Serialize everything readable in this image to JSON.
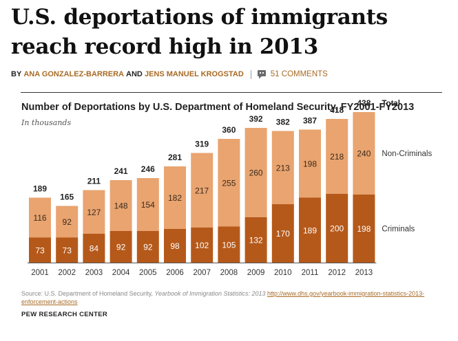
{
  "article": {
    "headline": "U.S. deportations of immigrants reach record high in 2013",
    "byline_prefix": "BY",
    "author_1": "ANA GONZALEZ-BARRERA",
    "byline_and": "AND",
    "author_2": "JENS MANUEL KROGSTAD",
    "comments_label": "51 COMMENTS",
    "comment_icon": "speech-bubble-icon"
  },
  "colors": {
    "criminals": "#b5591a",
    "non_criminals": "#e9a470",
    "accent": "#a86a24",
    "axis": "#555555"
  },
  "chart_data": {
    "type": "bar",
    "stacked": true,
    "title": "Number of Deportations by U.S. Department of Homeland Security, FY2001-FY2013",
    "subtitle": "In thousands",
    "categories": [
      "2001",
      "2002",
      "2003",
      "2004",
      "2005",
      "2006",
      "2007",
      "2008",
      "2009",
      "2010",
      "2011",
      "2012",
      "2013"
    ],
    "series": [
      {
        "name": "Criminals",
        "values": [
          73,
          73,
          84,
          92,
          92,
          98,
          102,
          105,
          132,
          170,
          189,
          200,
          198
        ]
      },
      {
        "name": "Non-Criminals",
        "values": [
          116,
          92,
          127,
          148,
          154,
          182,
          217,
          255,
          260,
          213,
          198,
          218,
          240
        ]
      }
    ],
    "totals_label": "Total",
    "totals": [
      189,
      165,
      211,
      241,
      246,
      281,
      319,
      360,
      392,
      382,
      387,
      418,
      438
    ],
    "ylim": [
      0,
      450
    ],
    "legend": "right, inline labels",
    "grid": false
  },
  "footer": {
    "source_prefix": "Source: U.S. Department of Homeland Security,",
    "source_pub": "Yearbook of Immigration Statistics: 2013",
    "source_url": "http://www.dhs.gov/yearbook-immigration-statistics-2013-enforcement-actions",
    "credit": "PEW RESEARCH CENTER"
  }
}
